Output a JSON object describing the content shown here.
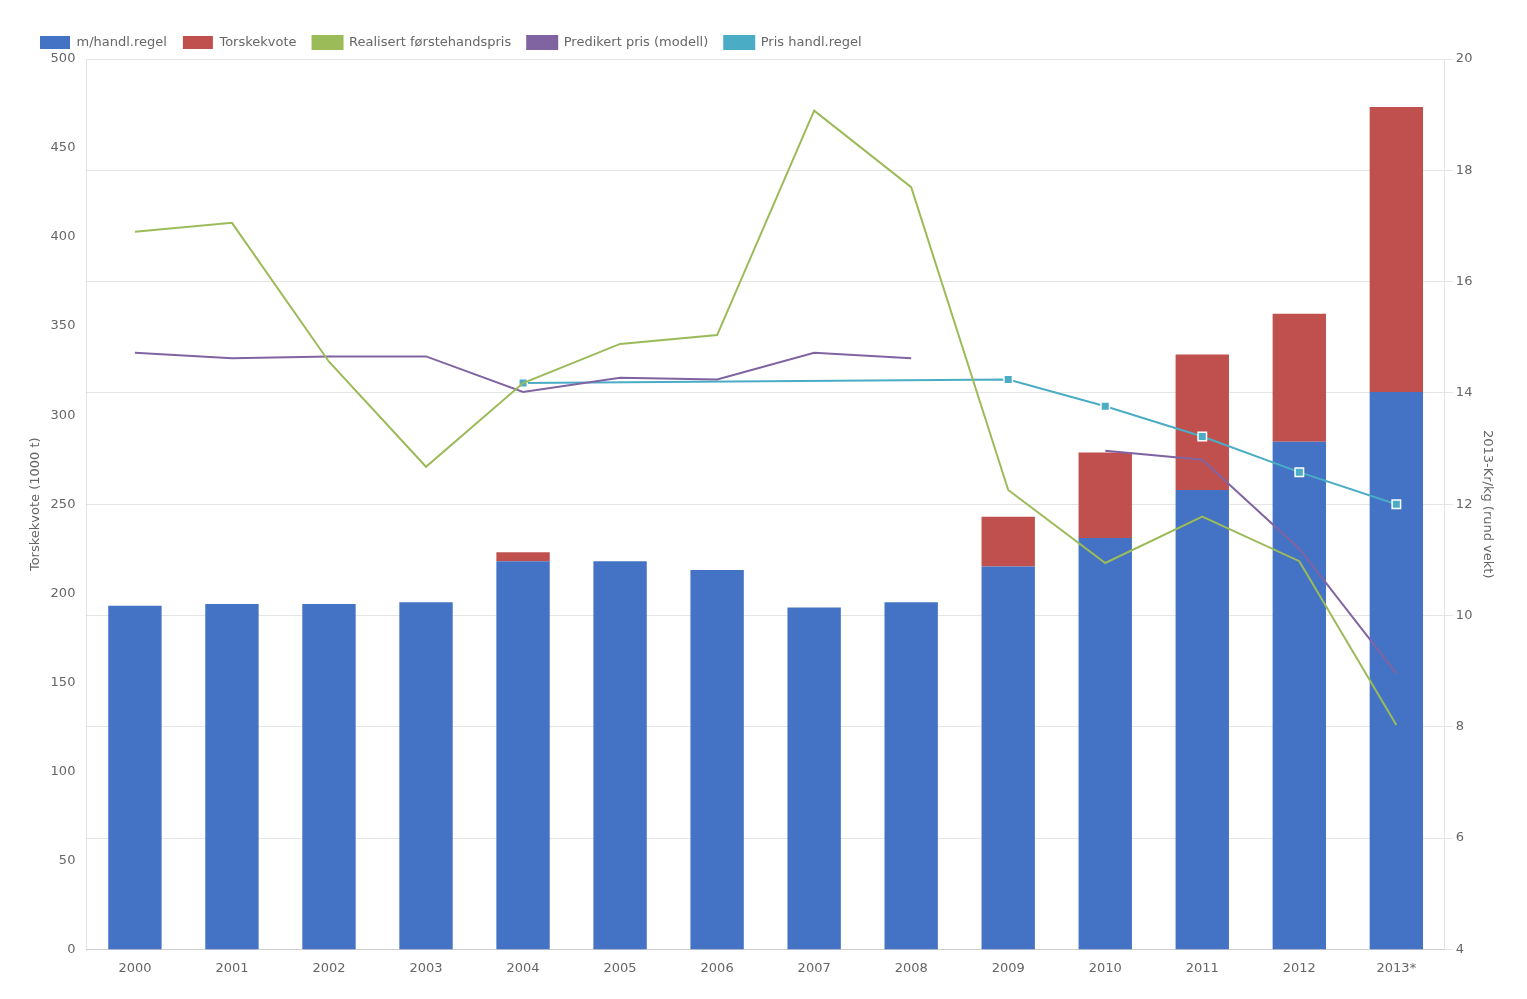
{
  "chart_data": {
    "type": "bar",
    "categories": [
      "2000",
      "2001",
      "2002",
      "2003",
      "2004",
      "2005",
      "2006",
      "2007",
      "2008",
      "2009",
      "2010",
      "2011",
      "2012",
      "2013*"
    ],
    "ylabel": "Torskekvote (1000 t)",
    "y2label": "2013-Kr/kg (rund vekt)",
    "ylim": [
      0,
      500
    ],
    "yticks": [
      0,
      50,
      100,
      150,
      200,
      250,
      300,
      350,
      400,
      450,
      500
    ],
    "y2lim": [
      4,
      20
    ],
    "y2ticks": [
      4,
      6,
      8,
      10,
      12,
      14,
      16,
      18,
      20
    ],
    "stacked": true,
    "grid": true,
    "legend": "upper left",
    "series": [
      {
        "name": "m/handl.regel",
        "type": "bar",
        "color": "#4472C4",
        "values": [
          193,
          194,
          194,
          195,
          218,
          218,
          213,
          192,
          195,
          215,
          231,
          258,
          285,
          313
        ]
      },
      {
        "name": "Torskekvote",
        "type": "bar",
        "color": "#C0504D",
        "values": [
          0,
          0,
          0,
          0,
          5,
          0,
          0,
          0,
          0,
          28,
          48,
          76,
          72,
          160
        ]
      },
      {
        "name": "Realisert førstehandspris",
        "type": "line",
        "color": "#9BBB59",
        "values": [
          403,
          408,
          330,
          271,
          318,
          340,
          345,
          471,
          428,
          258,
          217,
          243,
          218,
          126
        ]
      },
      {
        "name": "Predikert pris (modell)",
        "type": "line",
        "color": "#8064A2",
        "values": [
          335,
          332,
          333,
          333,
          313,
          321,
          320,
          335,
          332,
          null,
          280,
          275,
          225,
          155
        ]
      },
      {
        "name": "Pris handl.regel",
        "type": "line",
        "color": "#4BACC6",
        "marker": "square",
        "x": [
          "2004",
          "2009",
          "2010",
          "2011",
          "2012",
          "2013*"
        ],
        "values": [
          318,
          320,
          305,
          288,
          268,
          250
        ]
      }
    ]
  }
}
